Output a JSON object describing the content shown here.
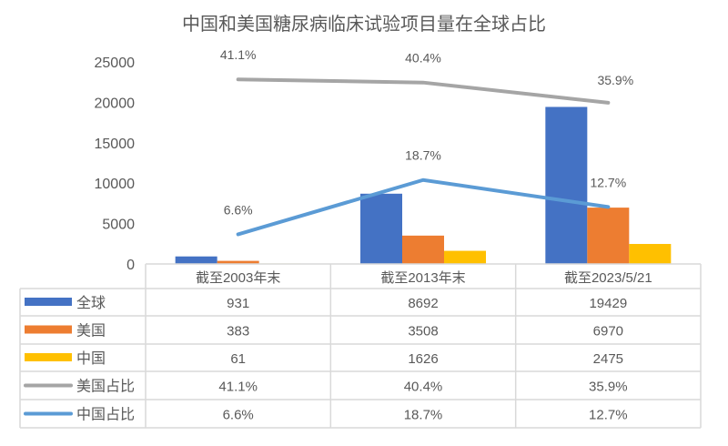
{
  "chart_data": {
    "type": "bar",
    "title": "中国和美国糖尿病临床试验项目量在全球占比",
    "categories": [
      "截至2003年末",
      "截至2013年末",
      "截至2023/5/21"
    ],
    "ylim": [
      0,
      25000
    ],
    "yticks": [
      "0",
      "5000",
      "10000",
      "15000",
      "20000",
      "25000"
    ],
    "y2lim": [
      0,
      45
    ],
    "grid": false,
    "legend": "data-table",
    "series": [
      {
        "name": "全球",
        "type": "bar",
        "color": "#4472C4",
        "values": [
          931,
          8692,
          19429
        ],
        "labels": [
          "931",
          "8692",
          "19429"
        ]
      },
      {
        "name": "美国",
        "type": "bar",
        "color": "#ED7D31",
        "values": [
          383,
          3508,
          6970
        ],
        "labels": [
          "383",
          "3508",
          "6970"
        ]
      },
      {
        "name": "中国",
        "type": "bar",
        "color": "#FFC000",
        "values": [
          61,
          1626,
          2475
        ],
        "labels": [
          "61",
          "1626",
          "2475"
        ]
      },
      {
        "name": "美国占比",
        "type": "line",
        "axis": "secondary",
        "color": "#A5A5A5",
        "values": [
          41.1,
          40.4,
          35.9
        ],
        "labels": [
          "41.1%",
          "40.4%",
          "35.9%"
        ]
      },
      {
        "name": "中国占比",
        "type": "line",
        "axis": "secondary",
        "color": "#5B9BD5",
        "values": [
          6.6,
          18.7,
          12.7
        ],
        "labels": [
          "6.6%",
          "18.7%",
          "12.7%"
        ]
      }
    ]
  }
}
